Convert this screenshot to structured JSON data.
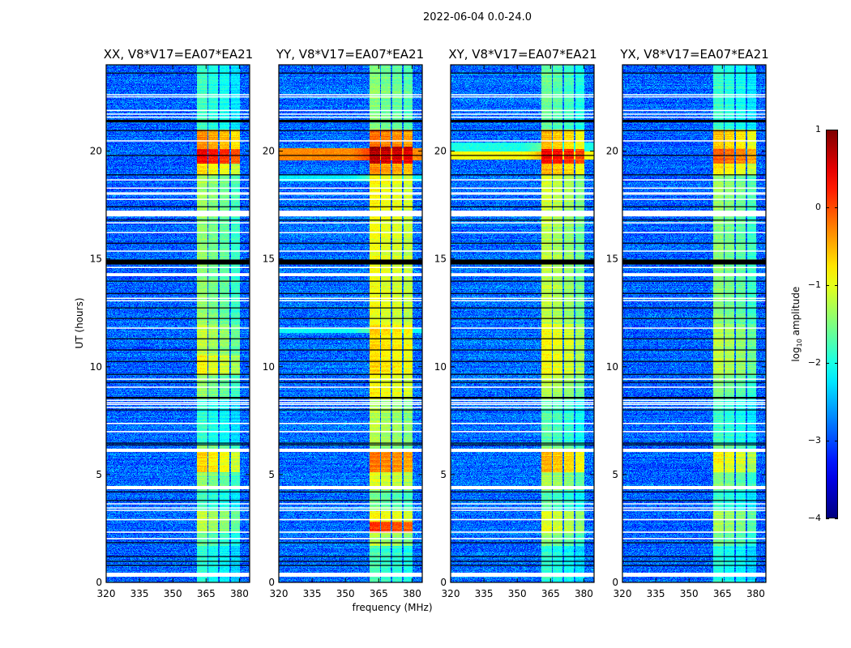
{
  "chart_data": {
    "type": "heatmap",
    "suptitle": "2022-06-04 0.0-24.0",
    "xlabel": "frequency (MHz)",
    "ylabel": "UT (hours)",
    "xlim": [
      320,
      384.6
    ],
    "ylim": [
      0,
      24
    ],
    "xticks": [
      320,
      335,
      350,
      365,
      380
    ],
    "xtick_labels": [
      "320",
      "335",
      "350",
      "365",
      "380"
    ],
    "yticks": [
      0,
      5,
      10,
      15,
      20
    ],
    "ytick_labels": [
      "0",
      "5",
      "10",
      "15",
      "20"
    ],
    "colorbar": {
      "label": "log10 amplitude",
      "label_main": "log",
      "label_sub": "10",
      "label_rest": " amplitude",
      "vmin": -4,
      "vmax": 1,
      "ticks": [
        1,
        0,
        -1,
        -2,
        -3,
        -4
      ],
      "tick_labels": [
        "1",
        "0",
        "−1",
        "−2",
        "−3",
        "−4"
      ],
      "colormap": "jet"
    },
    "spectral_windows_mhz": [
      [
        361,
        365.6
      ],
      [
        366,
        370.4
      ],
      [
        371.1,
        375.5
      ],
      [
        376.2,
        380.2
      ]
    ],
    "flagged_white_hours": [
      [
        0.26,
        0.45
      ],
      [
        2.0,
        2.06
      ],
      [
        2.3,
        2.36
      ],
      [
        2.88,
        2.94
      ],
      [
        3.32,
        3.37
      ],
      [
        3.43,
        3.48
      ],
      [
        3.62,
        3.67
      ],
      [
        4.32,
        4.47
      ],
      [
        6.05,
        6.2
      ],
      [
        6.96,
        7.02
      ],
      [
        7.34,
        7.4
      ],
      [
        8.1,
        8.14
      ],
      [
        8.25,
        8.28
      ],
      [
        8.33,
        8.36
      ],
      [
        8.44,
        8.47
      ],
      [
        9.03,
        9.08
      ],
      [
        9.4,
        9.45
      ],
      [
        11.77,
        11.82
      ],
      [
        13.05,
        13.09
      ],
      [
        13.16,
        13.2
      ],
      [
        14.2,
        14.34
      ],
      [
        14.58,
        14.63
      ],
      [
        15.34,
        15.39
      ],
      [
        16.2,
        16.25
      ],
      [
        16.65,
        16.7
      ],
      [
        16.97,
        17.24
      ],
      [
        17.74,
        17.79
      ],
      [
        17.98,
        18.03
      ],
      [
        18.05,
        18.09
      ],
      [
        18.27,
        18.31
      ],
      [
        18.64,
        18.69
      ],
      [
        20.45,
        20.5
      ],
      [
        21.55,
        21.6
      ],
      [
        21.7,
        21.74
      ],
      [
        21.87,
        21.91
      ],
      [
        22.5,
        22.54
      ],
      [
        22.6,
        22.64
      ]
    ],
    "flagged_black_hours": [
      [
        0.77,
        0.81
      ],
      [
        0.96,
        1.0
      ],
      [
        1.18,
        1.22
      ],
      [
        1.82,
        1.86
      ],
      [
        3.78,
        3.82
      ],
      [
        4.18,
        4.22
      ],
      [
        6.36,
        6.4
      ],
      [
        6.44,
        6.48
      ],
      [
        7.98,
        8.02
      ],
      [
        8.52,
        8.6
      ],
      [
        9.26,
        9.3
      ],
      [
        9.63,
        9.67
      ],
      [
        10.23,
        10.27
      ],
      [
        10.76,
        10.8
      ],
      [
        11.28,
        11.32
      ],
      [
        12.22,
        12.26
      ],
      [
        12.71,
        12.75
      ],
      [
        13.38,
        13.42
      ],
      [
        13.95,
        13.99
      ],
      [
        14.74,
        14.97
      ],
      [
        15.71,
        15.75
      ],
      [
        16.78,
        16.82
      ],
      [
        17.4,
        17.44
      ],
      [
        18.88,
        18.92
      ],
      [
        19.78,
        19.82
      ],
      [
        20.93,
        20.97
      ],
      [
        21.33,
        21.45
      ],
      [
        23.6,
        23.64
      ]
    ],
    "panels": [
      {
        "title": "XX, V8*V17=EA07*EA21",
        "background": -2.9,
        "window_offsets": [
          0.1,
          -0.05,
          -0.15,
          -0.35
        ],
        "band_segments": [
          [
            0,
            1.7,
            -2.0
          ],
          [
            1.7,
            2.3,
            -1.7
          ],
          [
            2.3,
            3.3,
            -1.3
          ],
          [
            3.3,
            4.3,
            -1.9
          ],
          [
            4.3,
            5.1,
            -1.5
          ],
          [
            5.1,
            6.05,
            -0.8
          ],
          [
            6.4,
            8.5,
            -2.0
          ],
          [
            8.5,
            9.6,
            -1.5
          ],
          [
            9.6,
            10.5,
            -0.95
          ],
          [
            10.5,
            12.0,
            -1.3
          ],
          [
            12.0,
            17.0,
            -1.5
          ],
          [
            17.0,
            18.9,
            -1.4
          ],
          [
            18.9,
            19.4,
            -0.8
          ],
          [
            19.4,
            20.1,
            0.3
          ],
          [
            20.1,
            21.0,
            -0.4
          ],
          [
            21.0,
            24,
            -1.9
          ]
        ],
        "broadband_segments": []
      },
      {
        "title": "YY, V8*V17=EA07*EA21",
        "background": -2.85,
        "window_offsets": [
          0.15,
          0.05,
          0.0,
          -0.1
        ],
        "band_segments": [
          [
            0,
            1.7,
            -1.9
          ],
          [
            1.7,
            2.3,
            -1.4
          ],
          [
            2.3,
            2.8,
            0.0
          ],
          [
            2.8,
            3.3,
            -1.0
          ],
          [
            3.3,
            4.3,
            -1.7
          ],
          [
            4.3,
            5.1,
            -1.2
          ],
          [
            5.1,
            6.05,
            -0.3
          ],
          [
            6.4,
            8.5,
            -1.4
          ],
          [
            8.5,
            9.6,
            -1.0
          ],
          [
            9.6,
            12.0,
            -0.85
          ],
          [
            12.0,
            17.0,
            -1.1
          ],
          [
            17.0,
            18.9,
            -1.0
          ],
          [
            18.9,
            19.4,
            -0.5
          ],
          [
            19.4,
            20.2,
            0.6
          ],
          [
            20.2,
            21.0,
            -0.3
          ],
          [
            21.0,
            24,
            -1.6
          ]
        ],
        "broadband_segments": [
          [
            19.55,
            20.15,
            -0.3
          ],
          [
            11.55,
            11.8,
            -2.1
          ],
          [
            18.6,
            18.9,
            -2.2
          ]
        ]
      },
      {
        "title": "XY, V8*V17=EA07*EA21",
        "background": -2.85,
        "window_offsets": [
          0.1,
          0.0,
          -0.1,
          -0.3
        ],
        "band_segments": [
          [
            0,
            1.7,
            -2.0
          ],
          [
            1.7,
            2.3,
            -1.5
          ],
          [
            2.3,
            3.3,
            -1.1
          ],
          [
            3.3,
            4.3,
            -1.8
          ],
          [
            4.3,
            5.1,
            -1.4
          ],
          [
            5.1,
            6.05,
            -0.6
          ],
          [
            6.4,
            8.5,
            -1.8
          ],
          [
            8.5,
            9.6,
            -1.3
          ],
          [
            9.6,
            12.0,
            -1.0
          ],
          [
            12.0,
            17.0,
            -1.3
          ],
          [
            17.0,
            18.9,
            -1.2
          ],
          [
            18.9,
            19.4,
            -0.6
          ],
          [
            19.4,
            20.1,
            0.3
          ],
          [
            20.1,
            21.0,
            -0.6
          ],
          [
            21.0,
            24,
            -1.7
          ]
        ],
        "broadband_segments": [
          [
            19.6,
            20.0,
            -0.9
          ],
          [
            20.0,
            20.4,
            -2.0
          ]
        ]
      },
      {
        "title": "YX, V8*V17=EA07*EA21",
        "background": -2.9,
        "window_offsets": [
          0.05,
          -0.05,
          -0.15,
          -0.35
        ],
        "band_segments": [
          [
            0,
            1.7,
            -2.0
          ],
          [
            1.7,
            2.3,
            -1.6
          ],
          [
            2.3,
            3.3,
            -1.3
          ],
          [
            3.3,
            4.3,
            -1.9
          ],
          [
            4.3,
            5.1,
            -1.5
          ],
          [
            5.1,
            6.05,
            -0.9
          ],
          [
            6.4,
            8.5,
            -1.9
          ],
          [
            8.5,
            9.6,
            -1.5
          ],
          [
            9.6,
            12.0,
            -1.25
          ],
          [
            12.0,
            17.0,
            -1.5
          ],
          [
            17.0,
            18.9,
            -1.4
          ],
          [
            18.9,
            19.4,
            -0.8
          ],
          [
            19.4,
            20.1,
            -0.1
          ],
          [
            20.1,
            21.0,
            -0.6
          ],
          [
            21.0,
            24,
            -1.9
          ]
        ],
        "broadband_segments": []
      }
    ]
  }
}
